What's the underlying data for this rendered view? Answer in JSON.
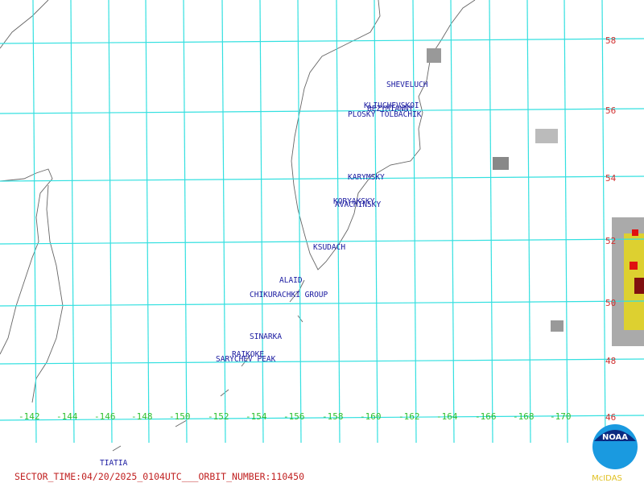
{
  "map": {
    "lat_labels": [
      58,
      56,
      54,
      52,
      50,
      48,
      46
    ],
    "lon_labels": [
      -142,
      -144,
      -146,
      -148,
      -150,
      -152,
      -154,
      -156,
      -158,
      -160,
      -162,
      -164,
      -166,
      -168,
      -170
    ],
    "volcanoes": [
      "SHEVELUCH",
      "KLIUCHEVSKOI",
      "BEZYMIANNY",
      "PLOSKY TOLBACHIK",
      "KARYMSKY",
      "KORYAKSKY",
      "AVACHINSKY",
      "KSUDACH",
      "ALAID",
      "CHIKURACHKI GROUP",
      "SINARKA",
      "RAIKOKE",
      "SARYCHEV PEAK",
      "TIATIA"
    ],
    "footer": "SECTOR_TIME:04/20/2025_0104UTC___ORBIT_NUMBER:110450",
    "logo": {
      "agency": "NOAA",
      "system": "McIDAS"
    }
  }
}
